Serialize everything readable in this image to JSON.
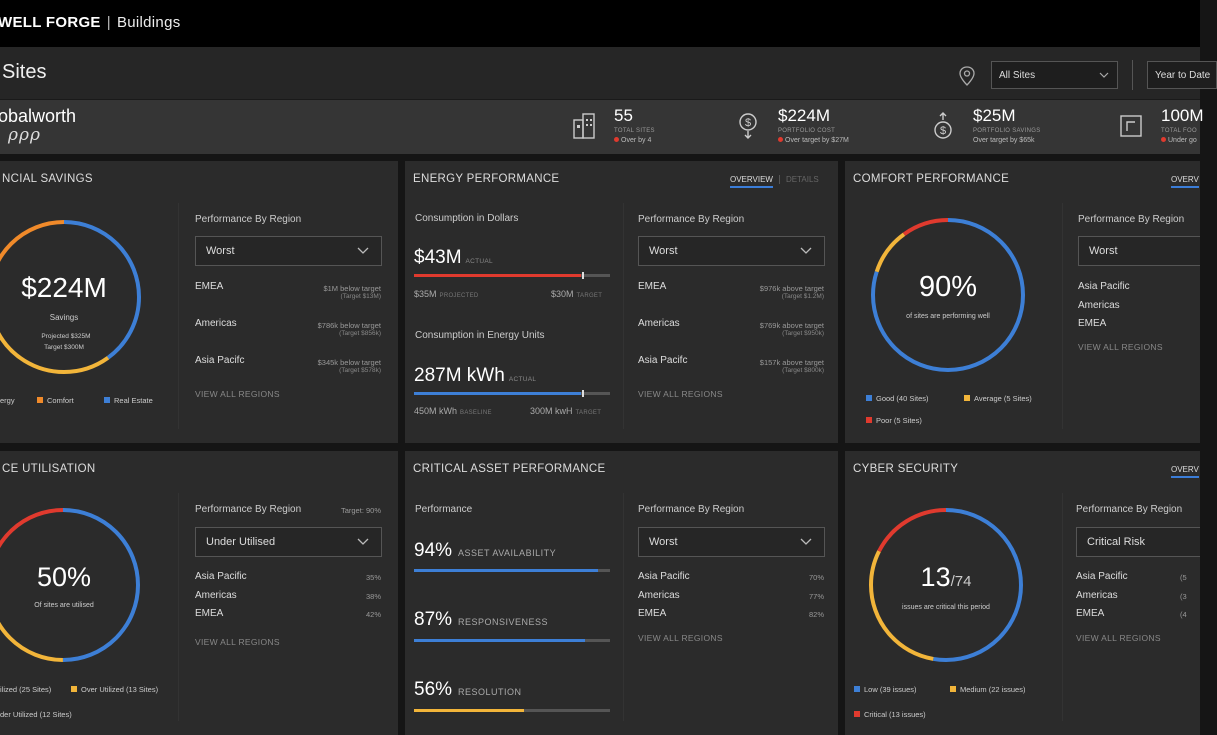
{
  "header": {
    "brand": "WELL FORGE",
    "product": "Buildings"
  },
  "sites_bar": {
    "title": "Sites",
    "site_filter": "All Sites",
    "period_filter": "Year to Date"
  },
  "org": {
    "name": "obalworth",
    "mark": "ρρρ"
  },
  "kpis": [
    {
      "value": "55",
      "label": "TOTAL SITES",
      "note": "Over by 4",
      "note_dot": true
    },
    {
      "value": "$224M",
      "label": "PORTFOLIO COST",
      "note": "Over target by $27M",
      "note_dot": true
    },
    {
      "value": "$25M",
      "label": "PORTFOLIO SAVINGS",
      "note": "Over target by $65k",
      "note_dot": false
    },
    {
      "value": "100M",
      "label": "TOTAL FOO",
      "note": "Under go",
      "note_dot": true
    }
  ],
  "colors": {
    "blue": "#3d7fd6",
    "orange": "#f08a2a",
    "yellow": "#f2b53a",
    "red": "#e03a2e"
  },
  "financial": {
    "title": "NCIAL SAVINGS",
    "value": "$224M",
    "caption": "Savings",
    "projected": "Projected $325M",
    "target": "Target $300M",
    "legend": [
      "ergy",
      "Comfort",
      "Real Estate"
    ],
    "region_heading": "Performance By Region",
    "dropdown": "Worst",
    "regions": [
      {
        "name": "EMEA",
        "value": "$1M below target",
        "target": "(Target $13M)"
      },
      {
        "name": "Americas",
        "value": "$786k below target",
        "target": "(Target $856k)"
      },
      {
        "name": "Asia Pacifc",
        "value": "$345k below target",
        "target": "(Target $578k)"
      }
    ],
    "view_all": "VIEW ALL REGIONS"
  },
  "energy": {
    "title": "ENERGY PERFORMANCE",
    "tab_active": "OVERVIEW",
    "tab_inactive": "DETAILS",
    "dollars_heading": "Consumption in Dollars",
    "dollars_value": "$43M",
    "dollars_tag": "ACTUAL",
    "dollars_projected": "$35M",
    "dollars_projected_tag": "PROJECTED",
    "dollars_target": "$30M",
    "dollars_target_tag": "TARGET",
    "dollars_fill": 0.85,
    "units_heading": "Consumption in Energy Units",
    "units_value": "287M kWh",
    "units_tag": "ACTUAL",
    "units_baseline": "450M kWh",
    "units_baseline_tag": "BASELINE",
    "units_target": "300M kwH",
    "units_target_tag": "TARGET",
    "units_fill": 0.85,
    "region_heading": "Performance By Region",
    "dropdown": "Worst",
    "regions": [
      {
        "name": "EMEA",
        "value": "$976k above target",
        "target": "(Target $1.2M)"
      },
      {
        "name": "Americas",
        "value": "$769k above target",
        "target": "(Target $950k)"
      },
      {
        "name": "Asia Pacifc",
        "value": "$157k above target",
        "target": "(Target $800k)"
      }
    ],
    "view_all": "VIEW ALL REGIONS"
  },
  "comfort": {
    "title": "COMFORT PERFORMANCE",
    "tab_active": "OVERV",
    "value": "90%",
    "caption": "of sites are performing well",
    "legend": [
      "Good (40 Sites)",
      "Average (5 Sites)",
      "Poor (5 Sites)"
    ],
    "region_heading": "Performance By Region",
    "dropdown": "Worst",
    "regions": [
      "Asia Pacific",
      "Americas",
      "EMEA"
    ],
    "view_all": "VIEW ALL REGIONS"
  },
  "space": {
    "title": "CE UTILISATION",
    "value": "50%",
    "caption": "Of sites are utilised",
    "legend": [
      "ilized (25 Sites)",
      "Over Utilized (13 Sites)",
      "der Utilized (12 Sites)"
    ],
    "region_heading": "Performance By Region",
    "target": "Target: 90%",
    "dropdown": "Under Utilised",
    "regions": [
      {
        "name": "Asia Pacific",
        "value": "35%"
      },
      {
        "name": "Americas",
        "value": "38%"
      },
      {
        "name": "EMEA",
        "value": "42%"
      }
    ],
    "view_all": "VIEW ALL REGIONS"
  },
  "asset": {
    "title": "CRITICAL ASSET PERFORMANCE",
    "heading": "Performance",
    "metrics": [
      {
        "value": "94%",
        "label": "ASSET AVAILABILITY",
        "fill": 0.94
      },
      {
        "value": "87%",
        "label": "RESPONSIVENESS",
        "fill": 0.87
      },
      {
        "value": "56%",
        "label": "RESOLUTION",
        "fill": 0.56
      }
    ],
    "region_heading": "Performance By Region",
    "dropdown": "Worst",
    "regions": [
      {
        "name": "Asia Pacific",
        "value": "70%"
      },
      {
        "name": "Americas",
        "value": "77%"
      },
      {
        "name": "EMEA",
        "value": "82%"
      }
    ],
    "view_all": "VIEW ALL REGIONS"
  },
  "cyber": {
    "title": "CYBER SECURITY",
    "tab_active": "OVERV",
    "value": "13",
    "total": "/74",
    "caption": "issues are critical this period",
    "legend": [
      "Low (39 issues)",
      "Medium (22 issues)",
      "Critical (13 issues)"
    ],
    "region_heading": "Performance By Region",
    "dropdown": "Critical Risk",
    "regions": [
      {
        "name": "Asia Pacific",
        "value": "(5"
      },
      {
        "name": "Americas",
        "value": "(3"
      },
      {
        "name": "EMEA",
        "value": "(4"
      }
    ],
    "view_all": "VIEW ALL REGIONS"
  }
}
